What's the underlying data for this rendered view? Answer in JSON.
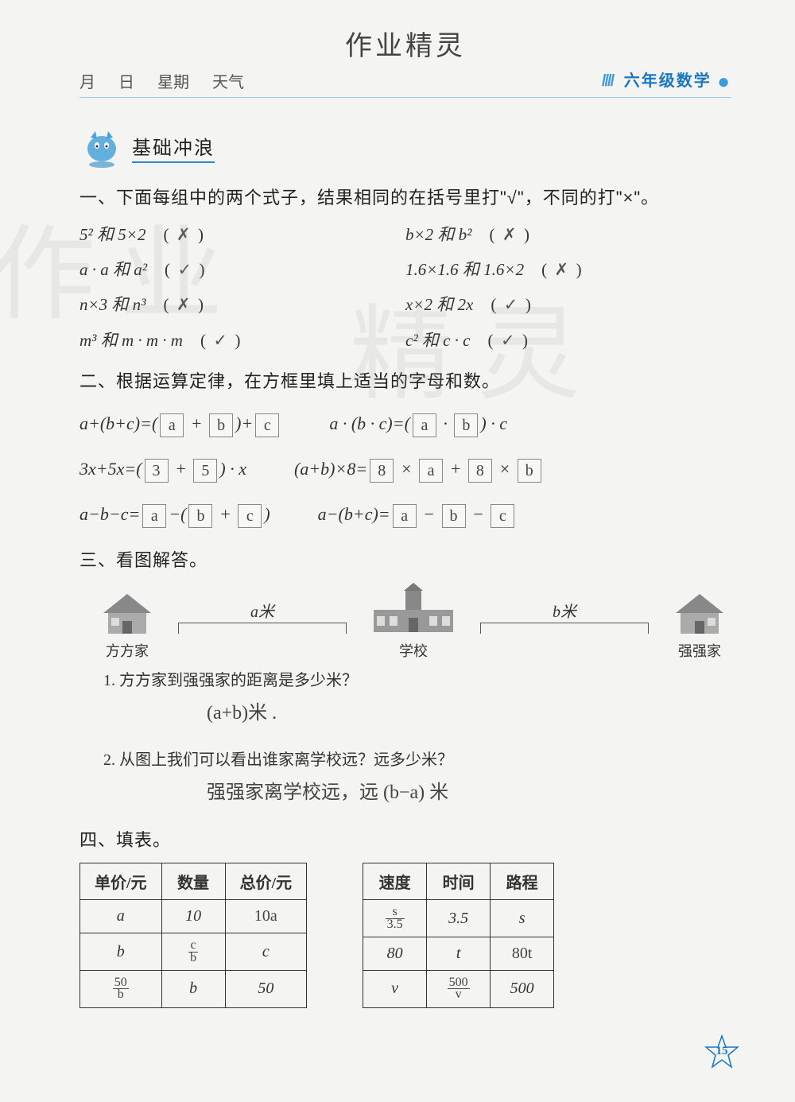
{
  "header": {
    "brush_title": "作业精灵",
    "month": "月",
    "day": "日",
    "weekday": "星期",
    "weather": "天气",
    "grade_subject": "六年级数学"
  },
  "section_banner": "基础冲浪",
  "q1": {
    "heading": "一、下面每组中的两个式子，结果相同的在括号里打\"√\"，不同的打\"×\"。",
    "rows": [
      {
        "left": "5² 和 5×2",
        "left_mark": "✗",
        "right": "b×2 和 b²",
        "right_mark": "✗"
      },
      {
        "left": "a · a 和 a²",
        "left_mark": "✓",
        "right": "1.6×1.6 和 1.6×2",
        "right_mark": "✗"
      },
      {
        "left": "n×3 和 n³",
        "left_mark": "✗",
        "right": "x×2 和 2x",
        "right_mark": "✓"
      },
      {
        "left": "m³ 和 m · m · m",
        "left_mark": "✓",
        "right": "c² 和 c · c",
        "right_mark": "✓"
      }
    ]
  },
  "q2": {
    "heading": "二、根据运算定律，在方框里填上适当的字母和数。",
    "lines": [
      {
        "left": {
          "prefix": "a+(b+c)=(",
          "boxes": [
            "a",
            "b"
          ],
          "joins": [
            "+"
          ],
          "suffix": ")+",
          "tail_boxes": [
            "c"
          ]
        },
        "right": {
          "prefix": "a · (b · c)=(",
          "boxes": [
            "a",
            "b"
          ],
          "joins": [
            "·"
          ],
          "suffix": ") · c",
          "tail_boxes": []
        }
      },
      {
        "left": {
          "prefix": "3x+5x=(",
          "boxes": [
            "3",
            "5"
          ],
          "joins": [
            "+"
          ],
          "suffix": ") · x",
          "tail_boxes": []
        },
        "right": {
          "prefix": "(a+b)×8=",
          "boxes": [
            "8",
            "a",
            "8",
            "b"
          ],
          "joins": [
            "×",
            "+",
            "×"
          ],
          "suffix": "",
          "tail_boxes": []
        }
      },
      {
        "left": {
          "prefix": "a−b−c=",
          "boxes": [
            "a"
          ],
          "joins": [],
          "suffix": "−(",
          "mid_boxes": [
            "b",
            "c"
          ],
          "mid_join": "+",
          "close": ")"
        },
        "right": {
          "prefix": "a−(b+c)=",
          "boxes": [
            "a",
            "b",
            "c"
          ],
          "joins": [
            "−",
            "−"
          ],
          "suffix": "",
          "tail_boxes": []
        }
      }
    ]
  },
  "q3": {
    "heading": "三、看图解答。",
    "labels": {
      "fangfang": "方方家",
      "school": "学校",
      "qiangqiang": "强强家"
    },
    "dist_a": "a米",
    "dist_b": "b米",
    "sub1": "1. 方方家到强强家的距离是多少米？",
    "ans1": "(a+b)米 .",
    "sub2": "2. 从图上我们可以看出谁家离学校远？远多少米？",
    "ans2": "强强家离学校远，远 (b−a) 米"
  },
  "q4": {
    "heading": "四、填表。",
    "table1": {
      "headers": [
        "单价/元",
        "数量",
        "总价/元"
      ],
      "rows": [
        [
          "a",
          "10",
          "10a"
        ],
        [
          "b",
          "c/b",
          "c"
        ],
        [
          "50/b",
          "b",
          "50"
        ]
      ],
      "handwritten": {
        "0.2": true,
        "1.1": true,
        "2.0": true
      }
    },
    "table2": {
      "headers": [
        "速度",
        "时间",
        "路程"
      ],
      "rows": [
        [
          "s/3.5",
          "3.5",
          "s"
        ],
        [
          "80",
          "t",
          "80t"
        ],
        [
          "v",
          "500/v",
          "500"
        ]
      ],
      "handwritten": {
        "0.0": true,
        "1.2": true,
        "2.1": true
      }
    }
  },
  "page_number": "15",
  "colors": {
    "accent_blue": "#1a77bf",
    "rule_blue": "#9cc5e6",
    "text": "#333333",
    "background": "#f4f4f2"
  }
}
